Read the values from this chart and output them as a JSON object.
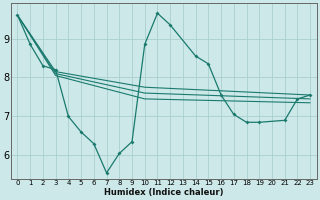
{
  "xlabel": "Humidex (Indice chaleur)",
  "bg_color": "#cce8e8",
  "line_color": "#1a7a6e",
  "grid_color": "#aacfcf",
  "xlim": [
    -0.5,
    23.5
  ],
  "ylim": [
    5.4,
    9.9
  ],
  "yticks": [
    6,
    7,
    8,
    9
  ],
  "xticks": [
    0,
    1,
    2,
    3,
    4,
    5,
    6,
    7,
    8,
    9,
    10,
    11,
    12,
    13,
    14,
    15,
    16,
    17,
    18,
    19,
    20,
    21,
    22,
    23
  ],
  "main_series_x": [
    0,
    1,
    2,
    3,
    4,
    5,
    6,
    7,
    8,
    9,
    10,
    11,
    12,
    14,
    15,
    16,
    17,
    18,
    19,
    21,
    22,
    23
  ],
  "main_series_y": [
    9.6,
    8.85,
    8.3,
    8.2,
    7.0,
    6.6,
    6.3,
    5.55,
    6.05,
    6.35,
    8.85,
    9.65,
    9.35,
    8.55,
    8.35,
    7.55,
    7.05,
    6.85,
    6.85,
    6.9,
    7.45,
    7.55
  ],
  "trend_lines": [
    {
      "x": [
        0,
        3,
        10,
        23
      ],
      "y": [
        9.6,
        8.15,
        7.75,
        7.55
      ]
    },
    {
      "x": [
        0,
        3,
        10,
        23
      ],
      "y": [
        9.6,
        8.1,
        7.6,
        7.45
      ]
    },
    {
      "x": [
        0,
        3,
        10,
        23
      ],
      "y": [
        9.6,
        8.05,
        7.45,
        7.35
      ]
    }
  ]
}
